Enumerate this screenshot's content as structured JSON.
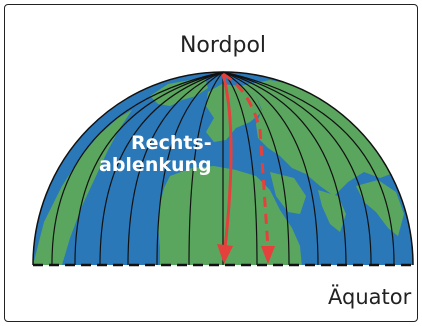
{
  "diagram": {
    "north_pole_label": "Nordpol",
    "equator_label": "Äquator",
    "deflection_label_line1": "Rechts-",
    "deflection_label_line2": "ablenkung",
    "colors": {
      "ocean": "#2b78b8",
      "land": "#5aa65e",
      "meridian": "#111111",
      "arrow": "#e4413d",
      "text": "#222222",
      "frame": "#222222"
    },
    "arrows": [
      {
        "name": "deflected-path",
        "style": "solid"
      },
      {
        "name": "straight-path",
        "style": "dashed"
      }
    ],
    "icons": [
      "hemisphere-globe",
      "meridian-lines",
      "equator-dashed-line"
    ]
  }
}
